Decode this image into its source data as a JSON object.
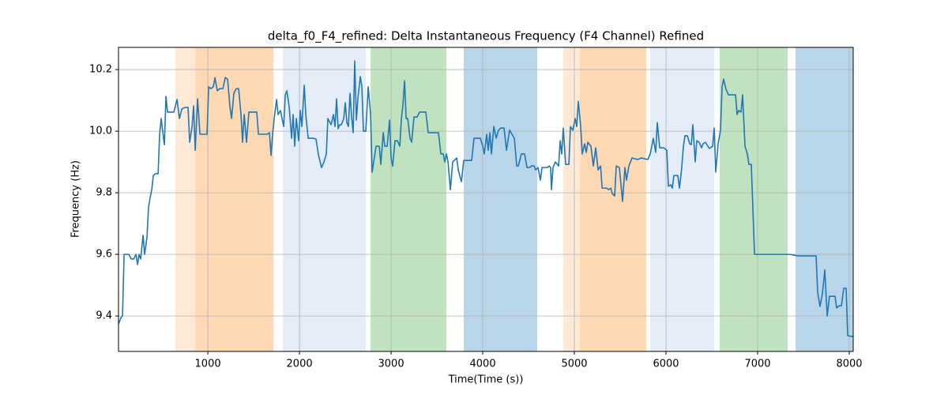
{
  "chart_data": {
    "type": "line",
    "title": "delta_f0_F4_refined: Delta Instantaneous Frequency (F4 Channel) Refined",
    "x_label": "Time(Time (s))",
    "y_label": "Frequency (Hz)",
    "xlim": [
      25,
      8043
    ],
    "ylim": [
      9.285,
      10.272
    ],
    "xticks": [
      1000,
      2000,
      3000,
      4000,
      5000,
      6000,
      7000,
      8000
    ],
    "yticks": [
      9.4,
      9.6,
      9.8,
      {
        "value": 10,
        "label": "10.0"
      },
      10.2
    ],
    "grid": true,
    "spans": [
      {
        "start": 646,
        "end": 862,
        "color": "#ffe8d6"
      },
      {
        "start": 862,
        "end": 1716,
        "color": "#ffd8b4"
      },
      {
        "start": 1819,
        "end": 2724,
        "color": "#e4ecf7"
      },
      {
        "start": 2776,
        "end": 3603,
        "color": "#c0e2c0"
      },
      {
        "start": 3793,
        "end": 4595,
        "color": "#b9d5e9"
      },
      {
        "start": 4879,
        "end": 5060,
        "color": "#ffe8d6"
      },
      {
        "start": 5060,
        "end": 5784,
        "color": "#ffd8b4"
      },
      {
        "start": 5828,
        "end": 6526,
        "color": "#e4ecf7"
      },
      {
        "start": 6586,
        "end": 7328,
        "color": "#c0e2c0"
      },
      {
        "start": 7414,
        "end": 8043,
        "color": "#b9d5e9"
      }
    ],
    "x": [
      26,
      52,
      69,
      86,
      138,
      164,
      190,
      216,
      233,
      250,
      267,
      293,
      310,
      336,
      353,
      371,
      388,
      405,
      431,
      457,
      474,
      491,
      509,
      526,
      543,
      560,
      595,
      629,
      664,
      690,
      716,
      750,
      784,
      802,
      828,
      845,
      862,
      888,
      914,
      991,
      1009,
      1034,
      1060,
      1078,
      1103,
      1129,
      1164,
      1190,
      1216,
      1241,
      1259,
      1284,
      1310,
      1336,
      1362,
      1379,
      1397,
      1422,
      1448,
      1474,
      1534,
      1552,
      1647,
      1672,
      1690,
      1707,
      1724,
      1750,
      1767,
      1793,
      1810,
      1828,
      1845,
      1862,
      1888,
      1914,
      1931,
      1948,
      1966,
      1991,
      2009,
      2026,
      2052,
      2069,
      2095,
      2155,
      2181,
      2207,
      2241,
      2267,
      2293,
      2310,
      2345,
      2371,
      2388,
      2405,
      2422,
      2440,
      2457,
      2483,
      2500,
      2517,
      2534,
      2552,
      2569,
      2586,
      2603,
      2621,
      2638,
      2664,
      2681,
      2698,
      2724,
      2750,
      2776,
      2793,
      2810,
      2836,
      2871,
      2888,
      2914,
      2931,
      2957,
      2983,
      3000,
      3017,
      3043,
      3069,
      3095,
      3112,
      3129,
      3147,
      3164,
      3181,
      3207,
      3224,
      3250,
      3284,
      3310,
      3379,
      3405,
      3517,
      3543,
      3569,
      3586,
      3603,
      3621,
      3647,
      3672,
      3716,
      3733,
      3767,
      3793,
      3879,
      3905,
      3974,
      4000,
      4017,
      4043,
      4060,
      4078,
      4095,
      4121,
      4147,
      4172,
      4198,
      4233,
      4259,
      4293,
      4319,
      4345,
      4371,
      4388,
      4422,
      4457,
      4483,
      4509,
      4534,
      4560,
      4578,
      4603,
      4629,
      4647,
      4664,
      4707,
      4724,
      4741,
      4750,
      4767,
      4793,
      4828,
      4845,
      4862,
      4879,
      4905,
      4940,
      4957,
      4983,
      5009,
      5026,
      5043,
      5069,
      5086,
      5112,
      5129,
      5147,
      5181,
      5207,
      5233,
      5259,
      5286,
      5303,
      5355,
      5372,
      5397,
      5414,
      5440,
      5457,
      5491,
      5526,
      5552,
      5569,
      5595,
      5629,
      5690,
      5733,
      5802,
      5828,
      5862,
      5888,
      5905,
      5931,
      5974,
      6009,
      6026,
      6052,
      6069,
      6086,
      6129,
      6147,
      6172,
      6190,
      6207,
      6233,
      6259,
      6276,
      6293,
      6319,
      6336,
      6362,
      6388,
      6405,
      6431,
      6457,
      6474,
      6509,
      6526,
      6543,
      6569,
      6595,
      6612,
      6629,
      6655,
      6681,
      6724,
      6759,
      6776,
      6793,
      6819,
      6836,
      6862,
      6888,
      6905,
      6931,
      6966,
      7353,
      7440,
      7509,
      7612,
      7638,
      7655,
      7681,
      7707,
      7733,
      7759,
      7784,
      7845,
      7862,
      7888,
      7914,
      7940,
      7966,
      7983,
      8043
    ],
    "series": [
      {
        "color": "#1f77b4",
        "values": [
          9.374,
          9.395,
          9.4,
          9.6,
          9.6,
          9.585,
          9.585,
          9.6,
          9.567,
          9.6,
          9.585,
          9.662,
          9.6,
          9.656,
          9.754,
          9.785,
          9.81,
          9.856,
          9.862,
          9.862,
          9.99,
          10.041,
          9.995,
          9.956,
          10.113,
          10.062,
          10.062,
          10.062,
          10.103,
          10.041,
          10.072,
          10.077,
          10.077,
          9.964,
          10.015,
          10.082,
          9.938,
          10.105,
          9.99,
          9.99,
          10.144,
          10.138,
          10.144,
          10.174,
          10.131,
          10.138,
          10.138,
          10.174,
          10.169,
          10.079,
          10.041,
          10.123,
          10.138,
          10.138,
          10.054,
          9.964,
          10.054,
          9.964,
          10.062,
          10.062,
          10.062,
          9.99,
          9.99,
          9.995,
          9.921,
          9.99,
          10.041,
          10.103,
          10.054,
          10.067,
          10.041,
          10.015,
          10.118,
          10.131,
          10.079,
          9.977,
          10.054,
          9.951,
          10.041,
          9.969,
          10.067,
          10.015,
          10.149,
          10.054,
          9.977,
          9.977,
          9.974,
          9.923,
          9.882,
          9.9,
          9.926,
          10.041,
          10.021,
          10.054,
          10.015,
          10.105,
          10.008,
          10.021,
          10.021,
          10.041,
          10.092,
          10.028,
          10.015,
          10.123,
          10.046,
          9.995,
          10.228,
          10.036,
          10.108,
          10.177,
          10.144,
          10.0,
          10.0,
          10.144,
          10.054,
          9.867,
          9.9,
          9.951,
          9.951,
          9.892,
          9.995,
          9.951,
          9.951,
          10.036,
          9.913,
          9.887,
          9.969,
          9.969,
          9.951,
          10.041,
          10.085,
          10.164,
          10.041,
          10.041,
          9.977,
          9.964,
          10.046,
          10.046,
          10.062,
          10.062,
          9.995,
          9.995,
          9.926,
          9.926,
          9.9,
          9.926,
          9.9,
          9.81,
          9.9,
          9.913,
          9.874,
          9.836,
          9.905,
          9.905,
          9.977,
          9.977,
          9.951,
          9.926,
          9.99,
          9.938,
          9.995,
          9.926,
          10.015,
          9.977,
          10.003,
          10.01,
          10.01,
          9.938,
          10.003,
          9.99,
          9.977,
          9.887,
          9.887,
          9.926,
          9.926,
          9.882,
          9.882,
          9.887,
          9.887,
          9.874,
          9.882,
          9.841,
          9.882,
          9.882,
          9.882,
          9.887,
          9.882,
          9.81,
          9.882,
          9.9,
          9.887,
          9.969,
          9.926,
          10.01,
          9.892,
          9.892,
          10.015,
          10.003,
          10.041,
          10.015,
          10.097,
          10.015,
          9.926,
          9.959,
          9.931,
          9.964,
          9.951,
          9.887,
          9.946,
          9.874,
          9.887,
          9.815,
          9.815,
          9.81,
          9.815,
          9.797,
          9.79,
          9.887,
          9.882,
          9.772,
          9.882,
          9.841,
          9.887,
          9.913,
          9.908,
          9.913,
          9.908,
          9.926,
          9.977,
          9.931,
          10.028,
          9.946,
          9.946,
          9.938,
          9.821,
          9.826,
          9.815,
          9.856,
          9.856,
          9.815,
          9.882,
          9.951,
          9.985,
          9.985,
          9.959,
          9.956,
          10.021,
          9.9,
          9.969,
          9.964,
          9.946,
          9.959,
          9.964,
          9.951,
          9.944,
          9.951,
          10.01,
          9.867,
          9.959,
          10.003,
          10.144,
          10.169,
          10.136,
          10.118,
          10.118,
          10.118,
          10.054,
          10.067,
          10.062,
          10.118,
          9.951,
          9.926,
          9.892,
          9.892,
          9.6,
          9.6,
          9.595,
          9.595,
          9.595,
          9.595,
          9.477,
          9.431,
          9.472,
          9.549,
          9.4,
          9.464,
          9.464,
          9.426,
          9.433,
          9.433,
          9.49,
          9.49,
          9.336,
          9.333
        ]
      }
    ]
  }
}
